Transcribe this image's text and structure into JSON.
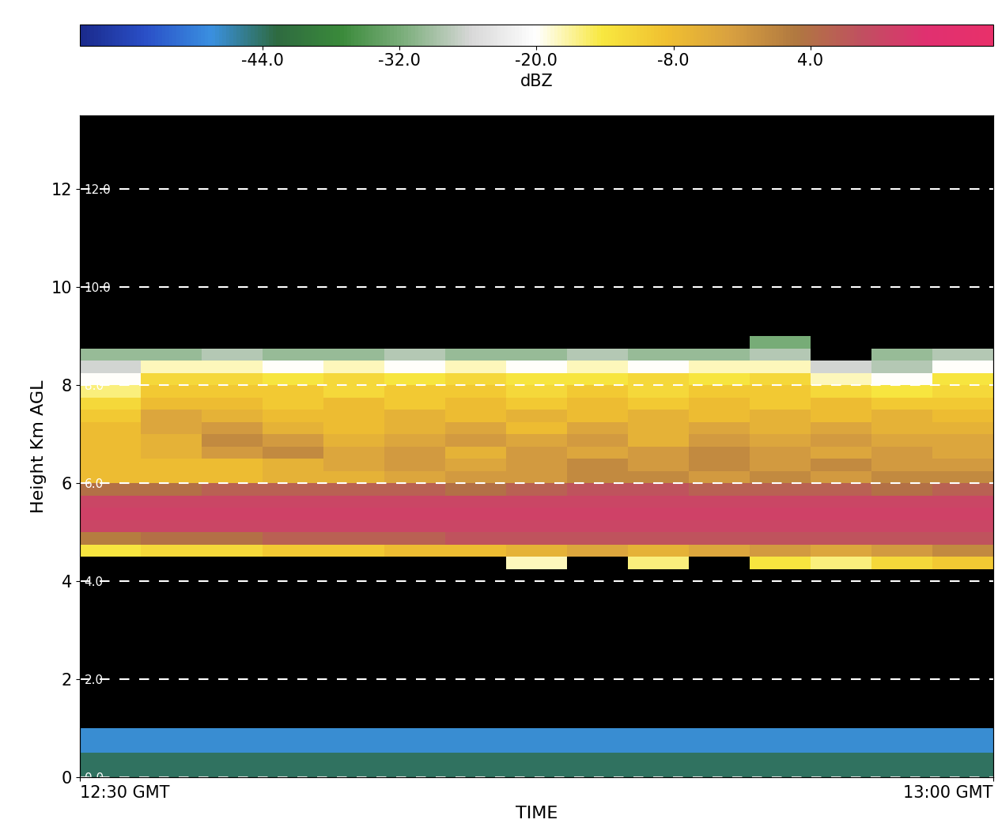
{
  "chart_data": {
    "type": "heatmap",
    "x_label": "TIME",
    "y_label": "Height Km AGL",
    "xlim": [
      0,
      30
    ],
    "xticks": [
      {
        "value": 0,
        "label": "12:30 GMT"
      },
      {
        "value": 30,
        "label": "13:00 GMT"
      }
    ],
    "ylim": [
      0,
      13.5
    ],
    "yticks": [
      0,
      2,
      4,
      6,
      8,
      10,
      12
    ],
    "y2lim": [
      0,
      13.5
    ],
    "y2ticks": [
      {
        "value": 0,
        "label": "0.0"
      },
      {
        "value": 2,
        "label": "2.0"
      },
      {
        "value": 4,
        "label": "4.0"
      },
      {
        "value": 6,
        "label": "6.0"
      },
      {
        "value": 8,
        "label": "8.0"
      },
      {
        "value": 10,
        "label": "10.0"
      },
      {
        "value": 12,
        "label": "12.0"
      }
    ],
    "grid": true,
    "x_edges": [
      0,
      2,
      4,
      6,
      8,
      10,
      12,
      14,
      16,
      18,
      20,
      22,
      24,
      26,
      28,
      30
    ],
    "y_edges": [
      0,
      0.5,
      1.0,
      4.25,
      4.5,
      4.75,
      5.0,
      5.25,
      5.5,
      5.75,
      6.0,
      6.25,
      6.5,
      6.75,
      7.0,
      7.25,
      7.5,
      7.75,
      8.0,
      8.25,
      8.5,
      8.75,
      9.0
    ],
    "cells": [
      [
        -44,
        -44,
        -44,
        -44,
        -44,
        -44,
        -44,
        -44,
        -44,
        -44,
        -44,
        -44,
        -44,
        -44,
        -44
      ],
      [
        -48,
        -48,
        -48,
        -48,
        -48,
        -48,
        -48,
        -48,
        -48,
        -48,
        -48,
        -48,
        -48,
        -48,
        -48
      ],
      [
        null,
        null,
        null,
        null,
        null,
        null,
        null,
        null,
        null,
        null,
        null,
        null,
        null,
        null,
        null
      ],
      [
        null,
        null,
        null,
        null,
        null,
        null,
        null,
        -18,
        null,
        -16,
        null,
        -14,
        -16,
        -12,
        -10
      ],
      [
        -14,
        -12,
        -12,
        -10,
        -10,
        -8,
        -8,
        -6,
        -4,
        -6,
        -4,
        -2,
        -4,
        -2,
        0
      ],
      [
        2,
        4,
        4,
        6,
        6,
        6,
        8,
        8,
        8,
        8,
        8,
        8,
        8,
        8,
        8
      ],
      [
        10,
        10,
        10,
        10,
        10,
        10,
        10,
        10,
        10,
        10,
        10,
        10,
        10,
        10,
        10
      ],
      [
        11,
        11,
        11,
        11,
        11,
        11,
        11,
        11,
        11,
        11,
        11,
        11,
        11,
        11,
        11
      ],
      [
        10,
        10,
        10,
        10,
        10,
        10,
        10,
        10,
        10,
        10,
        10,
        10,
        10,
        10,
        10
      ],
      [
        4,
        4,
        6,
        6,
        6,
        6,
        4,
        6,
        8,
        8,
        6,
        6,
        6,
        4,
        6
      ],
      [
        -8,
        -8,
        -8,
        -6,
        -6,
        -4,
        -2,
        -2,
        0,
        0,
        -2,
        0,
        -2,
        0,
        0
      ],
      [
        -8,
        -8,
        -8,
        -6,
        -4,
        -2,
        -4,
        -2,
        0,
        -2,
        0,
        -2,
        0,
        -2,
        -2
      ],
      [
        -8,
        -6,
        -2,
        0,
        -4,
        -2,
        -6,
        -2,
        -4,
        -2,
        0,
        -2,
        -4,
        -2,
        -4
      ],
      [
        -8,
        -6,
        0,
        -2,
        -6,
        -4,
        -2,
        -4,
        -2,
        -6,
        -2,
        -4,
        -2,
        -4,
        -4
      ],
      [
        -8,
        -4,
        -2,
        -6,
        -8,
        -6,
        -4,
        -8,
        -4,
        -6,
        -4,
        -6,
        -4,
        -6,
        -6
      ],
      [
        -10,
        -4,
        -6,
        -8,
        -8,
        -6,
        -8,
        -6,
        -8,
        -6,
        -8,
        -6,
        -8,
        -6,
        -8
      ],
      [
        -12,
        -8,
        -8,
        -10,
        -8,
        -10,
        -8,
        -10,
        -8,
        -10,
        -8,
        -10,
        -8,
        -10,
        -10
      ],
      [
        -16,
        -10,
        -10,
        -10,
        -12,
        -10,
        -10,
        -12,
        -10,
        -12,
        -10,
        -10,
        -12,
        -14,
        -12
      ],
      [
        -20,
        -12,
        -12,
        -14,
        -12,
        -14,
        -12,
        -14,
        -14,
        -12,
        -14,
        -12,
        -18,
        -20,
        -14
      ],
      [
        -26,
        -18,
        -18,
        -20,
        -18,
        -20,
        -18,
        -20,
        -18,
        -20,
        -18,
        -18,
        -26,
        -28,
        -20
      ],
      [
        -30,
        -30,
        -28,
        -30,
        -30,
        -28,
        -30,
        -30,
        -28,
        -30,
        -30,
        -28,
        null,
        -30,
        -28
      ],
      [
        null,
        null,
        null,
        null,
        null,
        null,
        null,
        null,
        null,
        null,
        null,
        -32,
        null,
        null,
        null
      ]
    ],
    "colorbar": {
      "label": "dBZ",
      "lim": [
        -60,
        20
      ],
      "ticks": [
        {
          "value": -44,
          "label": "-44.0"
        },
        {
          "value": -32,
          "label": "-32.0"
        },
        {
          "value": -20,
          "label": "-20.0"
        },
        {
          "value": -8,
          "label": "-8.0"
        },
        {
          "value": 4,
          "label": "4.0"
        }
      ]
    }
  }
}
